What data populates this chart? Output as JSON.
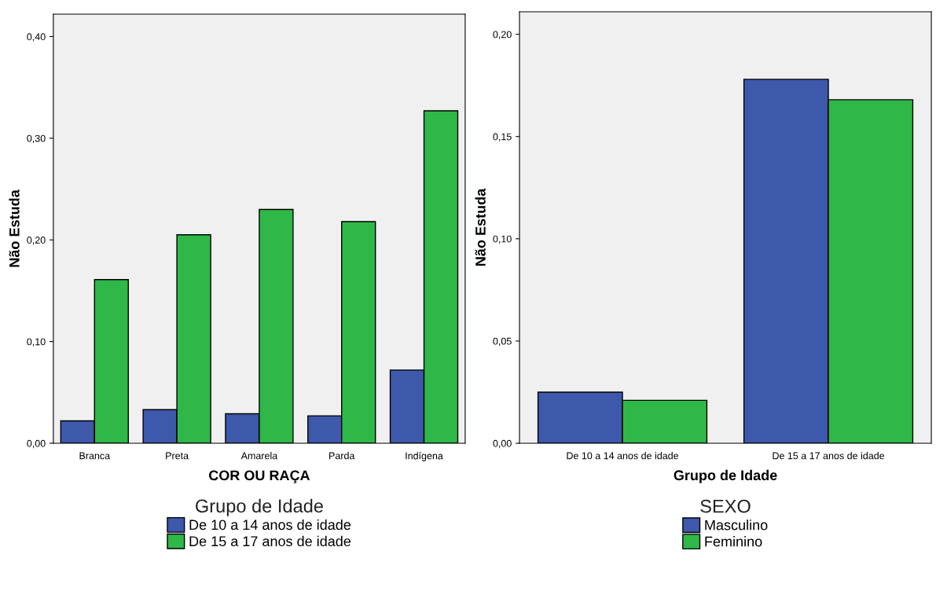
{
  "chart_data": [
    {
      "type": "bar",
      "xlabel": "COR OU RAÇA",
      "ylabel": "Não Estuda",
      "legend_title": "Grupo de Idade",
      "legend": "bottom",
      "grid": false,
      "categories": [
        "Branca",
        "Preta",
        "Amarela",
        "Parda",
        "Indígena"
      ],
      "ylim": [
        0,
        0.422
      ],
      "yticks": [
        {
          "value": 0,
          "label": "0,00"
        },
        {
          "value": 0.1,
          "label": "0,10"
        },
        {
          "value": 0.2,
          "label": "0,20"
        },
        {
          "value": 0.3,
          "label": "0,30"
        },
        {
          "value": 0.4,
          "label": "0,40"
        }
      ],
      "series": [
        {
          "name": "De 10 a 14 anos de idade",
          "color": "#3e58ac",
          "values": [
            0.022,
            0.033,
            0.029,
            0.027,
            0.072
          ]
        },
        {
          "name": "De 15 a 17 anos de idade",
          "color": "#2fb847",
          "values": [
            0.161,
            0.205,
            0.23,
            0.218,
            0.327
          ]
        }
      ]
    },
    {
      "type": "bar",
      "xlabel": "Grupo de Idade",
      "ylabel": "Não Estuda",
      "legend_title": "SEXO",
      "legend": "bottom",
      "grid": false,
      "categories": [
        "De 10 a 14 anos de idade",
        "De 15 a 17 anos de idade"
      ],
      "ylim": [
        0,
        0.211
      ],
      "yticks": [
        {
          "value": 0,
          "label": "0,00"
        },
        {
          "value": 0.05,
          "label": "0,05"
        },
        {
          "value": 0.1,
          "label": "0,10"
        },
        {
          "value": 0.15,
          "label": "0,15"
        },
        {
          "value": 0.2,
          "label": "0,20"
        }
      ],
      "series": [
        {
          "name": "Masculino",
          "color": "#3e58ac",
          "values": [
            0.025,
            0.178
          ]
        },
        {
          "name": "Feminino",
          "color": "#2fb847",
          "values": [
            0.021,
            0.168
          ]
        }
      ]
    }
  ]
}
